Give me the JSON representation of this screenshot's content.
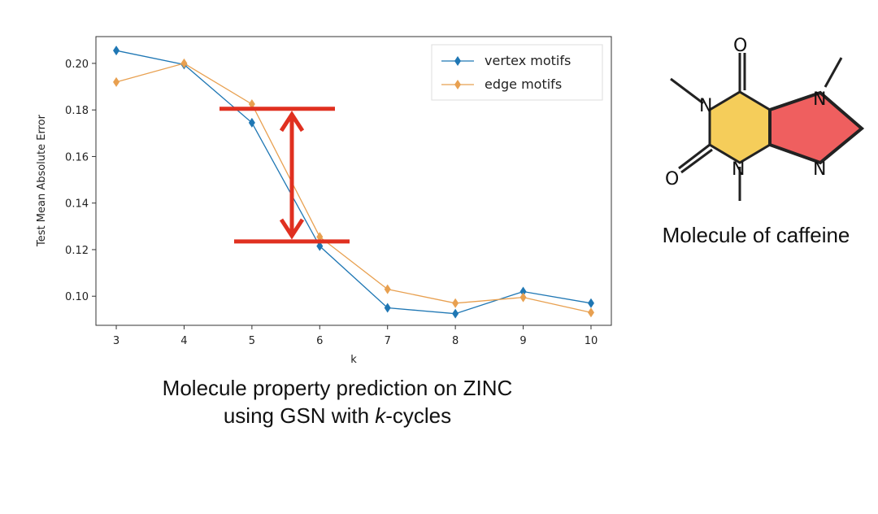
{
  "chart_data": {
    "type": "line",
    "xlabel": "k",
    "ylabel": "Test Mean Absolute Error",
    "x": [
      3,
      4,
      5,
      6,
      7,
      8,
      9,
      10
    ],
    "xticks": [
      "3",
      "4",
      "5",
      "6",
      "7",
      "8",
      "9",
      "10"
    ],
    "yticks": [
      "0.10",
      "0.12",
      "0.14",
      "0.16",
      "0.18",
      "0.20"
    ],
    "xlim": [
      2.7,
      10.3
    ],
    "ylim": [
      0.0875,
      0.2115
    ],
    "legend_position": "top-right",
    "series": [
      {
        "name": "vertex motifs",
        "color": "#1f77b4",
        "values": [
          0.2055,
          0.1995,
          0.1745,
          0.1215,
          0.095,
          0.0925,
          0.102,
          0.097
        ]
      },
      {
        "name": "edge motifs",
        "color": "#e8a050",
        "values": [
          0.192,
          0.2,
          0.1825,
          0.1255,
          0.103,
          0.097,
          0.0995,
          0.093
        ]
      }
    ],
    "annotation": {
      "type": "double-arrow",
      "color": "#e03020",
      "from": 0.1805,
      "to": 0.1235
    }
  },
  "caption": {
    "line1": "Molecule property prediction on ZINC",
    "line2_pre": "using GSN with ",
    "line2_em": "k",
    "line2_post": "-cycles"
  },
  "molecule": {
    "caption": "Molecule of caffeine",
    "atoms": {
      "o_top": "O",
      "o_left": "O",
      "n1": "N",
      "n3": "N",
      "n7": "N",
      "n9": "N"
    },
    "colors": {
      "six_ring": "#f5cd5a",
      "five_ring": "#ef5f5f"
    }
  }
}
